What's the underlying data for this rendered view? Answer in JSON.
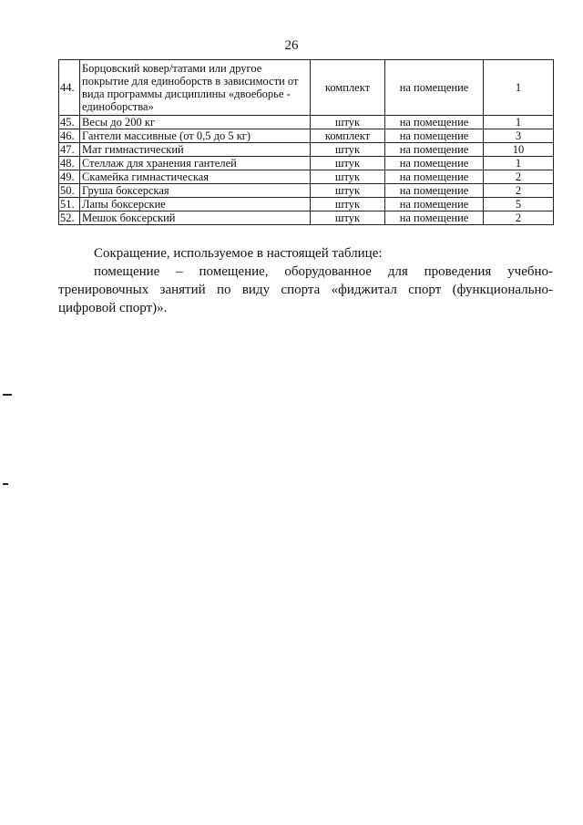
{
  "page_number": "26",
  "table": {
    "rows": [
      [
        "44.",
        "Борцовский ковер/татами или другое покрытие для единоборств в зависимости от вида программы дисциплины «двоеборье - единоборства»",
        "комплект",
        "на помещение",
        "1"
      ],
      [
        "45.",
        "Весы до 200 кг",
        "штук",
        "на помещение",
        "1"
      ],
      [
        "46.",
        "Гантели массивные (от 0,5 до 5 кг)",
        "комплект",
        "на помещение",
        "3"
      ],
      [
        "47.",
        "Мат гимнастический",
        "штук",
        "на помещение",
        "10"
      ],
      [
        "48.",
        "Стеллаж для хранения гантелей",
        "штук",
        "на помещение",
        "1"
      ],
      [
        "49.",
        "Скамейка гимнастическая",
        "штук",
        "на помещение",
        "2"
      ],
      [
        "50.",
        "Груша боксерская",
        "штук",
        "на помещение",
        "2"
      ],
      [
        "51.",
        "Лапы боксерские",
        "штук",
        "на помещение",
        "5"
      ],
      [
        "52.",
        "Мешок боксерский",
        "штук",
        "на помещение",
        "2"
      ]
    ]
  },
  "notes": {
    "heading": "Сокращение, используемое в настоящей таблице:",
    "definition": "помещение – помещение, оборудованное для проведения учебно-тренировочных занятий по виду спорта «фиджитал спорт (функционально-цифровой спорт)»."
  }
}
